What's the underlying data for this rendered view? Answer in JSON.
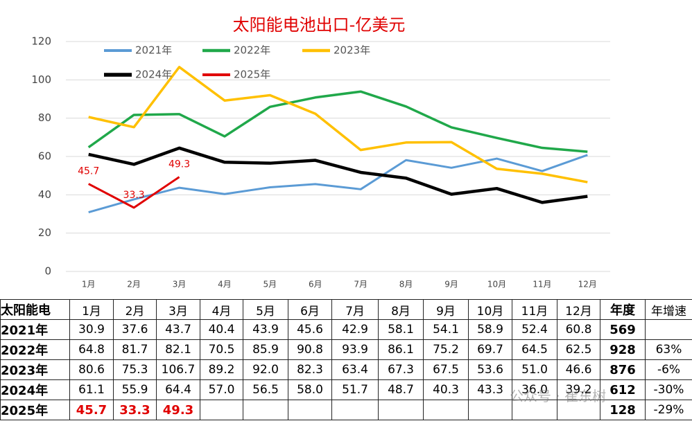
{
  "chart_data": {
    "type": "line",
    "title": "太阳能电池出口-亿美元",
    "categories": [
      "1月",
      "2月",
      "3月",
      "4月",
      "5月",
      "6月",
      "7月",
      "8月",
      "9月",
      "10月",
      "11月",
      "12月"
    ],
    "series": [
      {
        "name": "2021年",
        "color": "#5b9bd5",
        "width": 3,
        "values": [
          30.9,
          37.6,
          43.7,
          40.4,
          43.9,
          45.6,
          42.9,
          58.1,
          54.1,
          58.9,
          52.4,
          60.8
        ]
      },
      {
        "name": "2022年",
        "color": "#20a84a",
        "width": 3.5,
        "values": [
          64.8,
          81.7,
          82.1,
          70.5,
          85.9,
          90.8,
          93.9,
          86.1,
          75.2,
          69.7,
          64.5,
          62.5
        ]
      },
      {
        "name": "2023年",
        "color": "#ffc000",
        "width": 3.5,
        "values": [
          80.6,
          75.3,
          106.7,
          89.2,
          92.0,
          82.3,
          63.4,
          67.3,
          67.5,
          53.6,
          51.0,
          46.6
        ]
      },
      {
        "name": "2024年",
        "color": "#000000",
        "width": 4.5,
        "values": [
          61.1,
          55.9,
          64.4,
          57.0,
          56.5,
          58.0,
          51.7,
          48.7,
          40.3,
          43.3,
          36.0,
          39.2
        ]
      },
      {
        "name": "2025年",
        "color": "#e00000",
        "width": 3,
        "show_labels": true,
        "values": [
          45.7,
          33.3,
          49.3,
          null,
          null,
          null,
          null,
          null,
          null,
          null,
          null,
          null
        ]
      }
    ],
    "ylim": [
      0,
      120
    ],
    "yticks": [
      0,
      20,
      40,
      60,
      80,
      100,
      120
    ],
    "grid": true
  },
  "table": {
    "header": [
      "太阳能电",
      "1月",
      "2月",
      "3月",
      "4月",
      "5月",
      "6月",
      "7月",
      "8月",
      "9月",
      "10月",
      "11月",
      "12月",
      "年度",
      "年增速"
    ],
    "rows": [
      {
        "label": "2021年",
        "cells": [
          "30.9",
          "37.6",
          "43.7",
          "40.4",
          "43.9",
          "45.6",
          "42.9",
          "58.1",
          "54.1",
          "58.9",
          "52.4",
          "60.8",
          "569",
          null
        ]
      },
      {
        "label": "2022年",
        "cells": [
          "64.8",
          "81.7",
          "82.1",
          "70.5",
          "85.9",
          "90.8",
          "93.9",
          "86.1",
          "75.2",
          "69.7",
          "64.5",
          "62.5",
          "928",
          "63%"
        ]
      },
      {
        "label": "2023年",
        "cells": [
          "80.6",
          "75.3",
          "106.7",
          "89.2",
          "92.0",
          "82.3",
          "63.4",
          "67.3",
          "67.5",
          "53.6",
          "51.0",
          "46.6",
          "876",
          "-6%"
        ]
      },
      {
        "label": "2024年",
        "cells": [
          "61.1",
          "55.9",
          "64.4",
          "57.0",
          "56.5",
          "58.0",
          "51.7",
          "48.7",
          "40.3",
          "43.3",
          "36.0",
          "39.2",
          "612",
          "-30%"
        ]
      },
      {
        "label": "2025年",
        "value_color": "#e00000",
        "cells": [
          "45.7",
          "33.3",
          "49.3",
          null,
          null,
          null,
          null,
          null,
          null,
          null,
          null,
          null,
          "128",
          "-29%"
        ]
      }
    ]
  },
  "watermark": "公众号 · 崔东树"
}
